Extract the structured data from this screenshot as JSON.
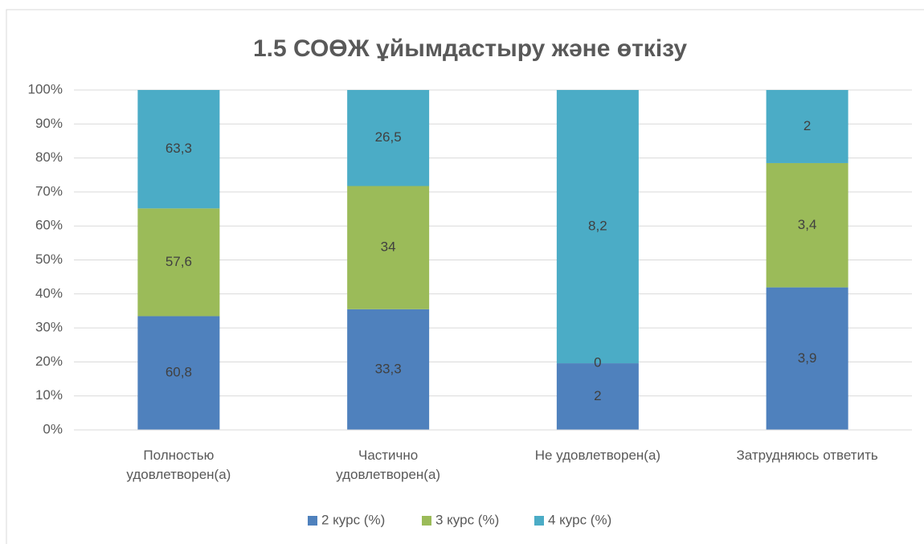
{
  "chart_data": {
    "type": "bar",
    "stacked": "percent",
    "title": "1.5 СОӨЖ ұйымдастыру және өткізу",
    "categories": [
      "Полностью удовлетворен(а)",
      "Частично удовлетворен(а)",
      "Не удовлетворен(а)",
      "Затрудняюсь ответить"
    ],
    "series": [
      {
        "name": "2 курс (%)",
        "color": "#4f81bd",
        "values": [
          60.8,
          33.3,
          2,
          3.9
        ],
        "value_labels": [
          "60,8",
          "33,3",
          "2",
          "3,9"
        ]
      },
      {
        "name": "3 курс (%)",
        "color": "#9bbb59",
        "values": [
          57.6,
          34,
          0,
          3.4
        ],
        "value_labels": [
          "57,6",
          "34",
          "0",
          "3,4"
        ]
      },
      {
        "name": "4 курс (%)",
        "color": "#4bacc6",
        "values": [
          63.3,
          26.5,
          8.2,
          2
        ],
        "value_labels": [
          "63,3",
          "26,5",
          "8,2",
          "2"
        ]
      }
    ],
    "ylim": [
      0,
      100
    ],
    "yticks": [
      {
        "value": 0,
        "label": "0%"
      },
      {
        "value": 10,
        "label": "10%"
      },
      {
        "value": 20,
        "label": "20%"
      },
      {
        "value": 30,
        "label": "30%"
      },
      {
        "value": 40,
        "label": "40%"
      },
      {
        "value": 50,
        "label": "50%"
      },
      {
        "value": 60,
        "label": "60%"
      },
      {
        "value": 70,
        "label": "70%"
      },
      {
        "value": 80,
        "label": "80%"
      },
      {
        "value": 90,
        "label": "90%"
      },
      {
        "value": 100,
        "label": "100%"
      }
    ],
    "grid": true,
    "legend": "bottom"
  }
}
